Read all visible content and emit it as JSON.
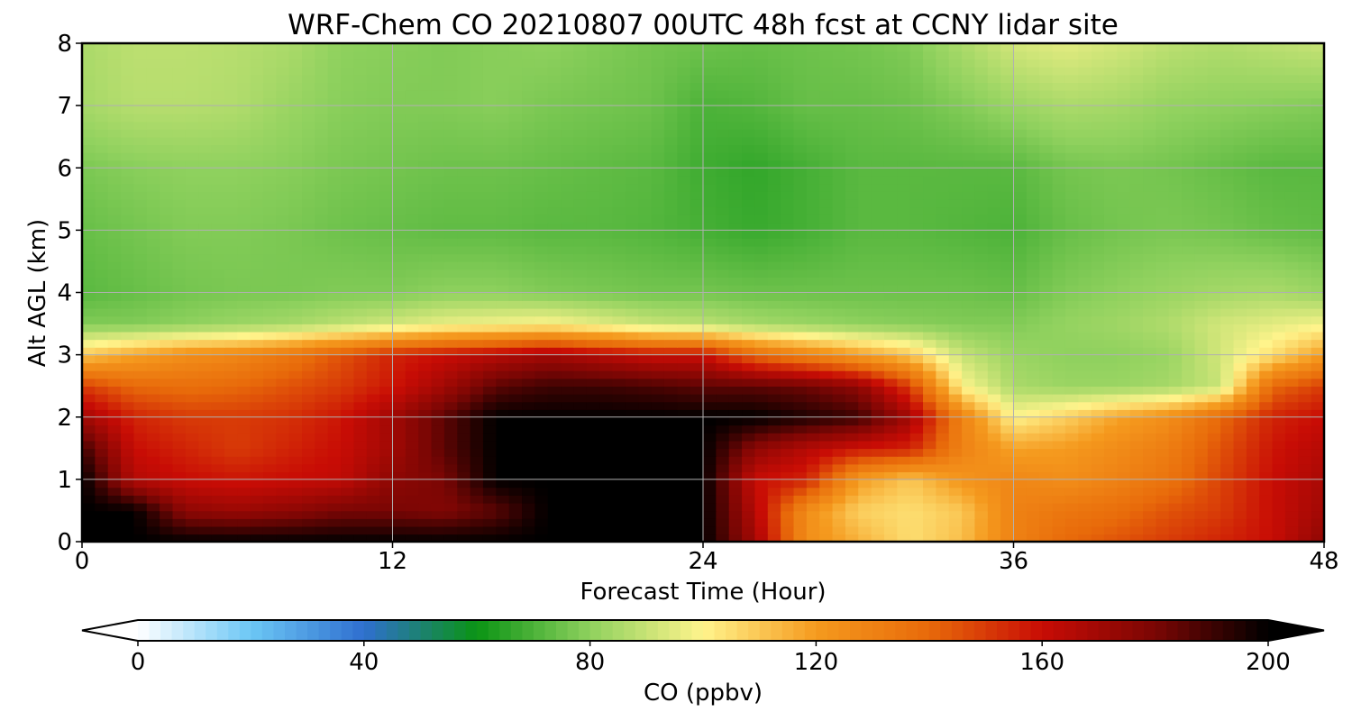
{
  "chart_data": {
    "type": "heatmap",
    "title": "WRF-Chem CO  20210807 00UTC 48h fcst at CCNY lidar site",
    "xlabel": "Forecast Time (Hour)",
    "ylabel": "Alt AGL (km)",
    "xlim": [
      0,
      48
    ],
    "ylim": [
      0,
      8
    ],
    "xticks": [
      0,
      12,
      24,
      36,
      48
    ],
    "yticks": [
      0,
      1,
      2,
      3,
      4,
      5,
      6,
      7,
      8
    ],
    "grid": true,
    "colorbar": {
      "label": "CO  (ppbv)",
      "range": [
        0,
        200
      ],
      "ticks": [
        0,
        40,
        80,
        120,
        160,
        200
      ],
      "extend": "both",
      "orientation": "horizontal",
      "colors": [
        "#ffffff",
        "#6cc7f5",
        "#2f6fcf",
        "#0a9414",
        "#8fd15e",
        "#fff48c",
        "#f59a1e",
        "#e86a0a",
        "#c80c05",
        "#7a0604",
        "#000000"
      ]
    },
    "field": {
      "x": [
        0,
        2,
        4,
        6,
        8,
        10,
        12,
        14,
        16,
        18,
        20,
        22,
        24,
        26,
        28,
        30,
        32,
        34,
        36,
        38,
        40,
        42,
        44,
        46,
        48
      ],
      "y": [
        0,
        0.5,
        1,
        1.5,
        2,
        2.5,
        3,
        3.5,
        4,
        5,
        6,
        7,
        8
      ],
      "values": [
        [
          200,
          200,
          200,
          200,
          200,
          200,
          200,
          200,
          200,
          200,
          200,
          200,
          200,
          170,
          125,
          115,
          105,
          112,
          130,
          140,
          145,
          150,
          155,
          160,
          175
        ],
        [
          200,
          200,
          175,
          172,
          175,
          180,
          180,
          178,
          185,
          200,
          200,
          200,
          200,
          165,
          125,
          108,
          105,
          110,
          130,
          135,
          138,
          145,
          150,
          160,
          170
        ],
        [
          200,
          165,
          160,
          158,
          160,
          162,
          175,
          180,
          200,
          200,
          200,
          200,
          200,
          160,
          155,
          120,
          110,
          122,
          128,
          125,
          130,
          136,
          148,
          160,
          168
        ],
        [
          190,
          160,
          155,
          150,
          155,
          160,
          170,
          185,
          200,
          200,
          200,
          200,
          200,
          175,
          165,
          158,
          155,
          130,
          118,
          120,
          126,
          132,
          145,
          158,
          165
        ],
        [
          170,
          155,
          150,
          150,
          152,
          158,
          170,
          185,
          200,
          200,
          200,
          200,
          200,
          200,
          195,
          190,
          170,
          130,
          100,
          108,
          118,
          125,
          140,
          155,
          160
        ],
        [
          150,
          140,
          138,
          140,
          145,
          150,
          158,
          170,
          185,
          190,
          190,
          188,
          185,
          185,
          182,
          175,
          150,
          100,
          85,
          82,
          82,
          84,
          90,
          140,
          150
        ],
        [
          110,
          118,
          125,
          128,
          135,
          145,
          155,
          160,
          165,
          170,
          165,
          160,
          160,
          140,
          130,
          120,
          110,
          90,
          82,
          80,
          80,
          82,
          92,
          105,
          120
        ],
        [
          78,
          78,
          80,
          82,
          84,
          88,
          92,
          96,
          98,
          100,
          95,
          90,
          88,
          84,
          82,
          80,
          79,
          78,
          78,
          81,
          83,
          86,
          92,
          95,
          98
        ],
        [
          72,
          74,
          76,
          77,
          77,
          78,
          78,
          80,
          80,
          78,
          77,
          76,
          76,
          75,
          75,
          75,
          75,
          75,
          74,
          78,
          80,
          82,
          84,
          85,
          82
        ],
        [
          74,
          76,
          78,
          78,
          77,
          75,
          74,
          73,
          73,
          72,
          72,
          71,
          69,
          67,
          69,
          72,
          72,
          71,
          70,
          74,
          76,
          77,
          76,
          74,
          73
        ],
        [
          77,
          79,
          80,
          80,
          79,
          77,
          76,
          75,
          75,
          74,
          73,
          72,
          68,
          66,
          69,
          72,
          72,
          72,
          72,
          76,
          77,
          76,
          74,
          72,
          72
        ],
        [
          84,
          87,
          87,
          86,
          82,
          79,
          78,
          78,
          79,
          77,
          76,
          75,
          70,
          71,
          74,
          74,
          75,
          78,
          82,
          85,
          84,
          81,
          80,
          79,
          78
        ],
        [
          85,
          88,
          88,
          87,
          85,
          80,
          79,
          78,
          79,
          80,
          78,
          76,
          75,
          74,
          75,
          76,
          78,
          85,
          92,
          95,
          92,
          88,
          86,
          88,
          90
        ]
      ]
    }
  }
}
